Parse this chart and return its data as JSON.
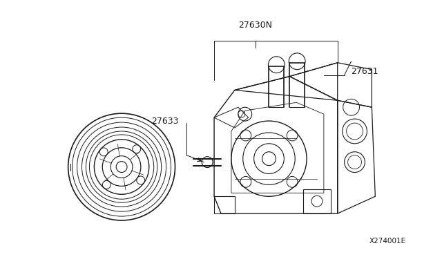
{
  "background_color": "#ffffff",
  "line_color": "#1a1a1a",
  "label_color": "#1a1a1a",
  "fig_width": 6.4,
  "fig_height": 3.72,
  "dpi": 100,
  "diagram_code": "X274001E"
}
